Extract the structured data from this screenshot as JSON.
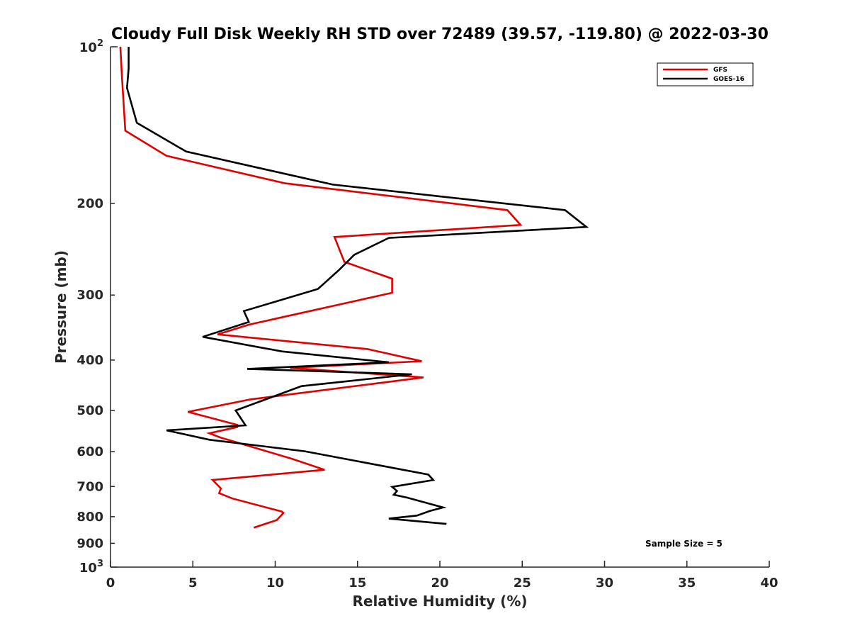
{
  "chart_data": {
    "type": "line",
    "title": "Cloudy Full Disk Weekly RH STD over 72489 (39.57, -119.80) @ 2022-03-30",
    "xlabel": "Relative Humidity (%)",
    "ylabel": "Pressure (mb)",
    "xlim": [
      0,
      40
    ],
    "ylim": [
      100,
      1000
    ],
    "yscale": "log",
    "y_reversed": true,
    "grid": false,
    "legend_position": "top-right",
    "x_ticks": [
      0,
      5,
      10,
      15,
      20,
      25,
      30,
      35,
      40
    ],
    "x_tick_labels": [
      "0",
      "5",
      "10",
      "15",
      "20",
      "25",
      "30",
      "35",
      "40"
    ],
    "y_ticks": [
      200,
      300,
      400,
      500,
      600,
      700,
      800,
      900
    ],
    "y_tick_labels": [
      "200",
      "300",
      "400",
      "500",
      "600",
      "700",
      "800",
      "900"
    ],
    "y_decade_ticks": [
      {
        "value": 100,
        "base": "10",
        "exp": "2"
      },
      {
        "value": 1000,
        "base": "10",
        "exp": "3"
      }
    ],
    "series": [
      {
        "name": "GFS",
        "color": "#e00000",
        "x": [
          0.6,
          0.7,
          0.9,
          3.4,
          10.6,
          24.1,
          24.9,
          13.6,
          14.2,
          17.1,
          17.1,
          8.4,
          6.5,
          15.6,
          18.9,
          10.9,
          19.0,
          8.5,
          4.7,
          7.7,
          7.7,
          6.0,
          6.7,
          11.0,
          13.0,
          6.2,
          6.7,
          6.6,
          7.4,
          10.4,
          10.5,
          10.1,
          8.7
        ],
        "y": [
          100,
          115,
          145,
          162,
          183,
          206,
          220,
          232,
          259,
          279,
          297,
          342,
          357,
          381,
          402,
          414,
          432,
          476,
          503,
          533,
          538,
          553,
          564,
          619,
          650,
          680,
          706,
          721,
          738,
          782,
          787,
          812,
          840
        ]
      },
      {
        "name": "GOES-16",
        "color": "#000000",
        "x": [
          1.1,
          1.1,
          1.0,
          1.6,
          4.6,
          13.5,
          27.6,
          28.9,
          16.9,
          14.8,
          13.9,
          12.6,
          8.1,
          8.4,
          5.6,
          10.4,
          16.9,
          8.3,
          18.3,
          11.6,
          7.6,
          8.2,
          3.4,
          6.0,
          11.8,
          19.3,
          19.6,
          17.1,
          17.4,
          17.2,
          18.0,
          20.2,
          19.4,
          18.6,
          16.9,
          20.4
        ],
        "y": [
          100,
          110,
          120,
          140,
          159,
          184,
          206,
          222,
          233,
          251,
          268,
          292,
          322,
          338,
          361,
          385,
          404,
          416,
          426,
          449,
          500,
          534,
          546,
          569,
          599,
          664,
          680,
          701,
          714,
          726,
          735,
          768,
          780,
          796,
          807,
          826
        ]
      }
    ],
    "annotations": [
      {
        "text": "Sample Size = 5"
      }
    ]
  }
}
